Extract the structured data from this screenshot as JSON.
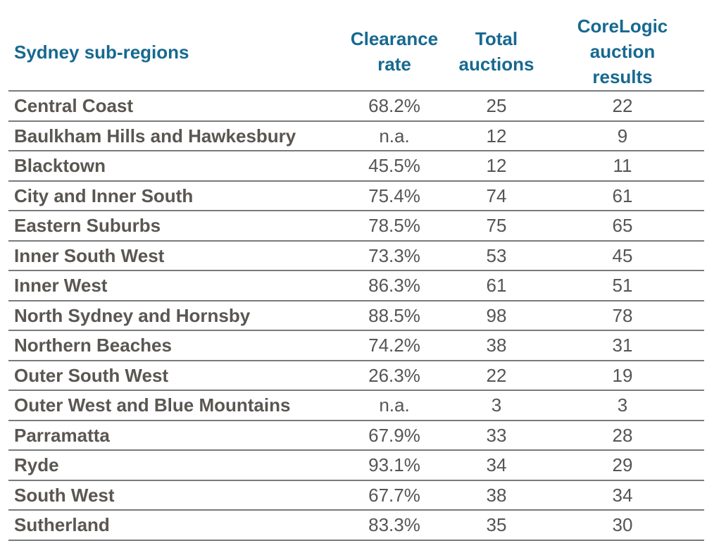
{
  "chart_data": {
    "type": "table",
    "columns": [
      "Sydney sub-regions",
      "Clearance rate",
      "Total auctions",
      "CoreLogic auction results"
    ],
    "header_lines": {
      "region": [
        "Sydney sub-regions"
      ],
      "clearance": [
        "Clearance",
        "rate"
      ],
      "total": [
        "Total",
        "auctions"
      ],
      "corelogic": [
        "CoreLogic",
        "auction",
        "results"
      ]
    },
    "rows": [
      {
        "region": "Central Coast",
        "clearance": "68.2%",
        "total": "25",
        "corelogic": "22"
      },
      {
        "region": "Baulkham Hills and Hawkesbury",
        "clearance": "n.a.",
        "total": "12",
        "corelogic": "9"
      },
      {
        "region": "Blacktown",
        "clearance": "45.5%",
        "total": "12",
        "corelogic": "11"
      },
      {
        "region": "City and Inner South",
        "clearance": "75.4%",
        "total": "74",
        "corelogic": "61"
      },
      {
        "region": "Eastern Suburbs",
        "clearance": "78.5%",
        "total": "75",
        "corelogic": "65"
      },
      {
        "region": "Inner South West",
        "clearance": "73.3%",
        "total": "53",
        "corelogic": "45"
      },
      {
        "region": "Inner West",
        "clearance": "86.3%",
        "total": "61",
        "corelogic": "51"
      },
      {
        "region": "North Sydney and Hornsby",
        "clearance": "88.5%",
        "total": "98",
        "corelogic": "78"
      },
      {
        "region": "Northern Beaches",
        "clearance": "74.2%",
        "total": "38",
        "corelogic": "31"
      },
      {
        "region": "Outer South West",
        "clearance": "26.3%",
        "total": "22",
        "corelogic": "19"
      },
      {
        "region": "Outer West and Blue Mountains",
        "clearance": "n.a.",
        "total": "3",
        "corelogic": "3"
      },
      {
        "region": "Parramatta",
        "clearance": "67.9%",
        "total": "33",
        "corelogic": "28"
      },
      {
        "region": "Ryde",
        "clearance": "93.1%",
        "total": "34",
        "corelogic": "29"
      },
      {
        "region": "South West",
        "clearance": "67.7%",
        "total": "38",
        "corelogic": "34"
      },
      {
        "region": "Sutherland",
        "clearance": "83.3%",
        "total": "35",
        "corelogic": "30"
      }
    ],
    "colors": {
      "header_text": "#17698f",
      "region_text": "#5a5651",
      "value_text": "#555555",
      "rule": "#7a7a7a"
    }
  }
}
